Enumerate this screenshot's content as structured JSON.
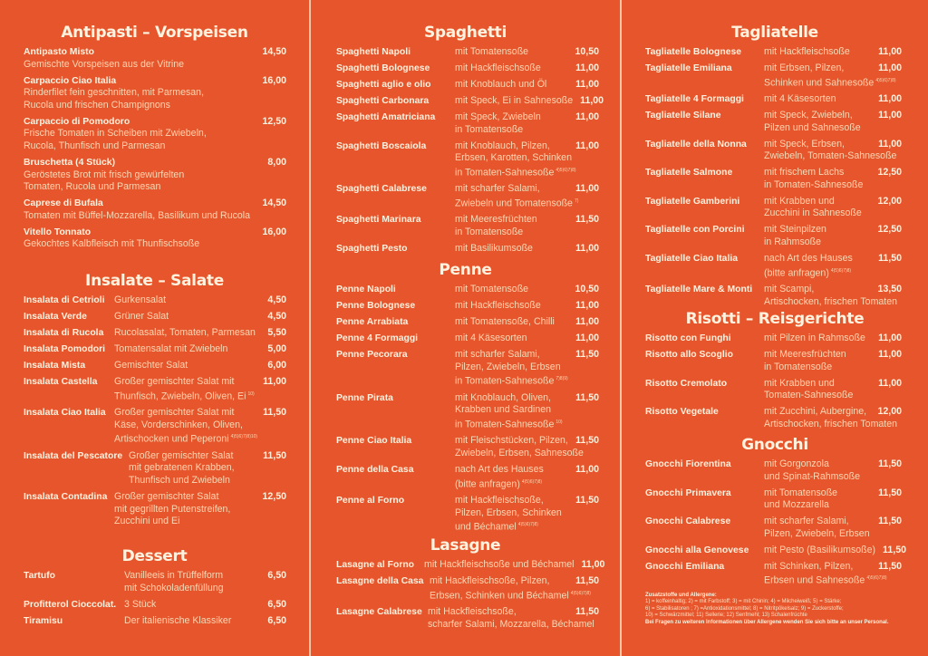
{
  "colors": {
    "background": "#e6552b",
    "title": "#fff3df",
    "text": "#fcd7b4"
  },
  "columns": [
    {
      "sections": [
        {
          "title": "Antipasti – Vorspeisen",
          "layout": "stacked",
          "items": [
            {
              "name": "Antipasto Misto",
              "desc": [
                "Gemischte Vorspeisen aus der Vitrine"
              ],
              "price": "14,50"
            },
            {
              "name": "Carpaccio Ciao Italia",
              "desc": [
                "Rinderfilet fein geschnitten, mit Parmesan,",
                "Rucola und frischen Champignons"
              ],
              "price": "16,00"
            },
            {
              "name": "Carpaccio di Pomodoro",
              "desc": [
                "Frische Tomaten in Scheiben mit Zwiebeln,",
                "Rucola, Thunfisch und Parmesan"
              ],
              "price": "12,50"
            },
            {
              "name": "Bruschetta (4 Stück)",
              "desc": [
                "Geröstetes Brot mit frisch gewürfelten",
                "Tomaten, Rucola und Parmesan"
              ],
              "price": "8,00"
            },
            {
              "name": "Caprese di Bufala",
              "desc": [
                "Tomaten mit Büffel-Mozzarella, Basilikum und Rucola"
              ],
              "price": "14,50"
            },
            {
              "name": "Vitello Tonnato",
              "desc": [
                "Gekochtes Kalbfleisch mit Thunfischsoße"
              ],
              "price": "16,00"
            }
          ]
        },
        {
          "title": "Insalate – Salate",
          "items": [
            {
              "name": "Insalata di Cetrioli",
              "desc": [
                "Gurkensalat"
              ],
              "price": "4,50"
            },
            {
              "name": "Insalata Verde",
              "desc": [
                "Grüner Salat"
              ],
              "price": "4,50"
            },
            {
              "name": "Insalata di Rucola",
              "desc": [
                "Rucolasalat, Tomaten, Parmesan"
              ],
              "price": "5,50"
            },
            {
              "name": "Insalata Pomodori",
              "desc": [
                "Tomatensalat mit Zwiebeln"
              ],
              "price": "5,00"
            },
            {
              "name": "Insalata Mista",
              "desc": [
                "Gemischter Salat"
              ],
              "price": "6,00"
            },
            {
              "name": "Insalata Castella",
              "desc": [
                "Großer gemischter Salat mit",
                "Thunfisch, Zwiebeln, Oliven, Ei"
              ],
              "sup": "10)",
              "price": "11,00"
            },
            {
              "name": "Insalata Ciao Italia",
              "desc": [
                "Großer gemischter Salat mit",
                "Käse, Vorderschinken, Oliven,",
                "Artischocken und Peperoni"
              ],
              "sup": "4)5)6)7)8)10)",
              "price": "11,50"
            },
            {
              "name": "Insalata del Pescatore",
              "desc": [
                "Großer gemischter Salat",
                "mit gebratenen Krabben,",
                "Thunfisch und Zwiebeln"
              ],
              "price": "11,50"
            },
            {
              "name": "Insalata Contadina",
              "desc": [
                "Großer gemischter Salat",
                "mit gegrillten Putenstreifen,",
                "Zucchini und Ei"
              ],
              "price": "12,50"
            }
          ]
        },
        {
          "title": "Dessert",
          "items": [
            {
              "name": "Tartufo",
              "desc": [
                "Vanilleeis in Trüffelform",
                "mit Schokoladenfüllung"
              ],
              "price": "6,50"
            },
            {
              "name": "Profitterol Cioccolat.",
              "desc": [
                "3 Stück"
              ],
              "price": "6,50"
            },
            {
              "name": "Tiramisu",
              "desc": [
                "Der italienische Klassiker"
              ],
              "price": "6,50"
            }
          ]
        }
      ]
    },
    {
      "sections": [
        {
          "title": "Spaghetti",
          "items": [
            {
              "name": "Spaghetti Napoli",
              "desc": [
                "mit Tomatensoße"
              ],
              "price": "10,50"
            },
            {
              "name": "Spaghetti Bolognese",
              "desc": [
                "mit Hackfleischsoße"
              ],
              "price": "11,00"
            },
            {
              "name": "Spaghetti aglio e olio",
              "desc": [
                "mit Knoblauch und Öl"
              ],
              "price": "11,00"
            },
            {
              "name": "Spaghetti Carbonara",
              "desc": [
                "mit Speck, Ei in Sahnesoße"
              ],
              "price": "11,00"
            },
            {
              "name": "Spaghetti Amatriciana",
              "desc": [
                "mit Speck, Zwiebeln",
                "in Tomatensoße"
              ],
              "price": "11,00"
            },
            {
              "name": "Spaghetti Boscaiola",
              "desc": [
                "mit Knoblauch, Pilzen,",
                "Erbsen, Karotten, Schinken",
                "in Tomaten-Sahnesoße"
              ],
              "sup": "4)5)6)7)8)",
              "price": "11,00"
            },
            {
              "name": "Spaghetti Calabrese",
              "desc": [
                "mit scharfer Salami,",
                "Zwiebeln und Tomatensoße"
              ],
              "sup": "7)",
              "price": "11,00"
            },
            {
              "name": "Spaghetti Marinara",
              "desc": [
                "mit Meeresfrüchten",
                "in Tomatensoße"
              ],
              "price": "11,50"
            },
            {
              "name": "Spaghetti Pesto",
              "desc": [
                "mit Basilikumsoße"
              ],
              "price": "11,00"
            }
          ]
        },
        {
          "title": "Penne",
          "items": [
            {
              "name": "Penne Napoli",
              "desc": [
                "mit Tomatensoße"
              ],
              "price": "10,50"
            },
            {
              "name": "Penne Bolognese",
              "desc": [
                "mit Hackfleischsoße"
              ],
              "price": "11,00"
            },
            {
              "name": "Penne Arrabiata",
              "desc": [
                "mit Tomatensoße, Chilli"
              ],
              "price": "11,00"
            },
            {
              "name": "Penne 4 Formaggi",
              "desc": [
                "mit 4 Käsesorten"
              ],
              "price": "11,00"
            },
            {
              "name": "Penne Pecorara",
              "desc": [
                "mit scharfer Salami,",
                "Pilzen, Zwiebeln, Erbsen",
                "in Tomaten-Sahnesoße"
              ],
              "sup": "7)8)9)",
              "price": "11,50"
            },
            {
              "name": "Penne Pirata",
              "desc": [
                "mit Knoblauch, Oliven,",
                "Krabben und Sardinen",
                "in Tomaten-Sahnesoße"
              ],
              "sup": "10)",
              "price": "11,50"
            },
            {
              "name": "Penne Ciao Italia",
              "desc": [
                "mit Fleischstücken, Pilzen,",
                "Zwiebeln, Erbsen, Sahnesoße"
              ],
              "price": "11,50"
            },
            {
              "name": "Penne della Casa",
              "desc": [
                "nach Art des Hauses",
                "(bitte anfragen)"
              ],
              "sup": "4)5)6)7)8)",
              "price": "11,00"
            },
            {
              "name": "Penne al Forno",
              "desc": [
                "mit Hackfleischsoße,",
                "Pilzen, Erbsen, Schinken",
                "und Béchamel"
              ],
              "sup": "4)5)6)7)8)",
              "price": "11,50"
            }
          ]
        },
        {
          "title": "Lasagne",
          "items": [
            {
              "name": "Lasagne al Forno",
              "desc": [
                "mit Hackfleischsoße und Béchamel"
              ],
              "price": "11,00"
            },
            {
              "name": "Lasagne della Casa",
              "desc": [
                "mit Hackfleischsoße, Pilzen,",
                "Erbsen, Schinken und Béchamel"
              ],
              "sup": "4)5)6)7)8)",
              "price": "11,50"
            },
            {
              "name": "Lasagne Calabrese",
              "desc": [
                "mit Hackfleischsoße,",
                "scharfer Salami, Mozzarella, Béchamel"
              ],
              "price": "11,50"
            }
          ]
        }
      ]
    },
    {
      "sections": [
        {
          "title": "Tagliatelle",
          "items": [
            {
              "name": "Tagliatelle Bolognese",
              "desc": [
                "mit Hackfleischsoße"
              ],
              "price": "11,00"
            },
            {
              "name": "Tagliatelle Emiliana",
              "desc": [
                "mit Erbsen, Pilzen,",
                "Schinken und Sahnesoße"
              ],
              "sup": "4)5)6)7)8)",
              "price": "11,00"
            },
            {
              "name": "Tagliatelle 4 Formaggi",
              "desc": [
                "mit 4 Käsesorten"
              ],
              "price": "11,00"
            },
            {
              "name": "Tagliatelle Silane",
              "desc": [
                "mit Speck, Zwiebeln,",
                "Pilzen und Sahnesoße"
              ],
              "price": "11,00"
            },
            {
              "name": "Tagliatelle della Nonna",
              "desc": [
                "mit Speck, Erbsen,",
                "Zwiebeln, Tomaten-Sahnesoße"
              ],
              "price": "11,00"
            },
            {
              "name": "Tagliatelle Salmone",
              "desc": [
                "mit frischem Lachs",
                "in Tomaten-Sahnesoße"
              ],
              "price": "12,50"
            },
            {
              "name": "Tagliatelle Gamberini",
              "desc": [
                "mit Krabben und",
                "Zucchini in Sahnesoße"
              ],
              "price": "12,00"
            },
            {
              "name": "Tagliatelle con Porcini",
              "desc": [
                "mit Steinpilzen",
                "in Rahmsoße"
              ],
              "price": "12,50"
            },
            {
              "name": "Tagliatelle Ciao Italia",
              "desc": [
                "nach Art des Hauses",
                "(bitte anfragen)"
              ],
              "sup": "4)5)6)7)8)",
              "price": "11,50"
            },
            {
              "name": "Tagliatelle Mare & Monti",
              "desc": [
                "mit Scampi,",
                "Artischocken, frischen Tomaten"
              ],
              "price": "13,50"
            }
          ]
        },
        {
          "title": "Risotti – Reisgerichte",
          "items": [
            {
              "name": "Risotto con Funghi",
              "desc": [
                "mit Pilzen in Rahmsoße"
              ],
              "price": "11,00"
            },
            {
              "name": "Risotto allo Scoglio",
              "desc": [
                "mit Meeresfrüchten",
                "in Tomatensoße"
              ],
              "price": "11,00"
            },
            {
              "name": "Risotto Cremolato",
              "desc": [
                "mit Krabben und",
                "Tomaten-Sahnesoße"
              ],
              "price": "11,00"
            },
            {
              "name": "Risotto Vegetale",
              "desc": [
                "mit Zucchini, Aubergine,",
                "Artischocken, frischen Tomaten"
              ],
              "price": "12,00"
            }
          ]
        },
        {
          "title": "Gnocchi",
          "items": [
            {
              "name": "Gnocchi Fiorentina",
              "desc": [
                "mit Gorgonzola",
                "und Spinat-Rahmsoße"
              ],
              "price": "11,50"
            },
            {
              "name": "Gnocchi Primavera",
              "desc": [
                "mit Tomatensoße",
                "und Mozzarella"
              ],
              "price": "11,50"
            },
            {
              "name": "Gnocchi Calabrese",
              "desc": [
                "mit scharfer Salami,",
                "Pilzen, Zwiebeln, Erbsen"
              ],
              "price": "11,50"
            },
            {
              "name": "Gnocchi alla Genovese",
              "desc": [
                "mit Pesto (Basilikumsoße)"
              ],
              "price": "11,50"
            },
            {
              "name": "Gnocchi Emiliana",
              "desc": [
                "mit Schinken, Pilzen,",
                "Erbsen und Sahnesoße"
              ],
              "sup": "4)5)6)7)8)",
              "price": "11,50"
            }
          ]
        }
      ]
    }
  ],
  "allergens": {
    "title": "Zusatzstoffe und Allergene:",
    "lines": [
      "1) = koffeinhaltig; 2) = mit Farbstoff; 3) = mit Chinin; 4) = Milcheiweiß; 5) = Stärke;",
      "6) = Stabilisatoren ; 7) =Antioxidationsmittel; 8) = Nitritpökelsalz; 9) = Zuckerstoffe;",
      "10) = Schwärzmittel; 11) Sellerie; 12) Senfmehl; 13) Schalenfrüchte"
    ],
    "note": "Bei Fragen zu weiteren Informationen über Allergene wenden Sie sich bitte an unser Personal."
  }
}
